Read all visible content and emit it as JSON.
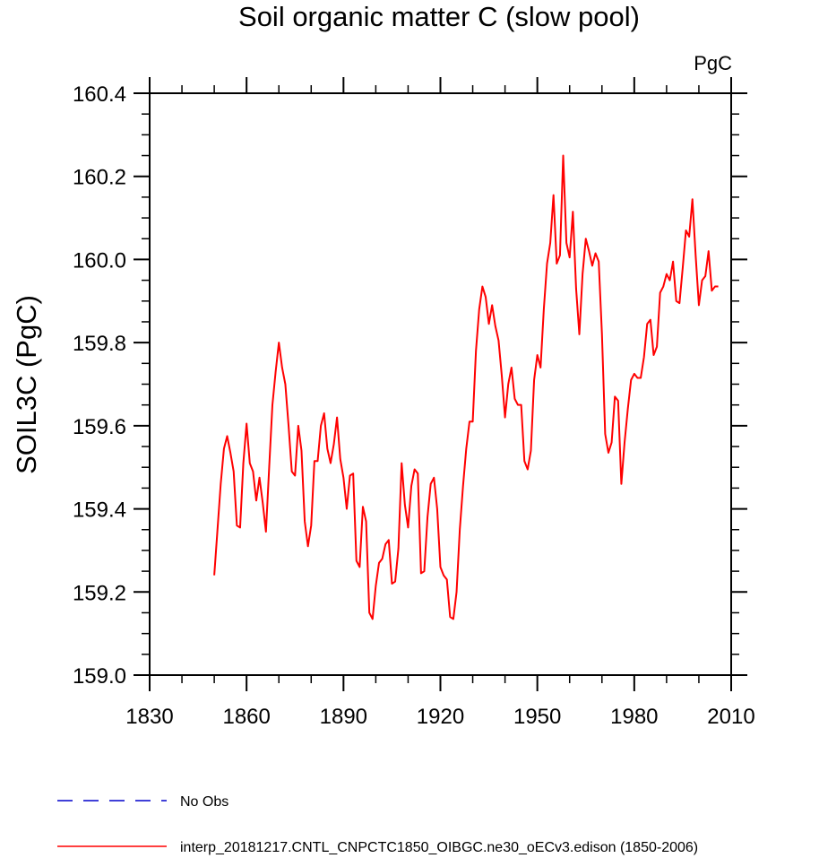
{
  "chart_data": {
    "type": "line",
    "title": "Soil organic matter C (slow pool)",
    "units": "PgC",
    "ylabel": "SOIL3C  (PgC)",
    "xlabel": "",
    "xlim": [
      1830,
      2010
    ],
    "ylim": [
      159.0,
      160.4
    ],
    "xticks": [
      1830,
      1860,
      1890,
      1920,
      1950,
      1980,
      2010
    ],
    "yticks": [
      159.0,
      159.2,
      159.4,
      159.6,
      159.8,
      160.0,
      160.2,
      160.4
    ],
    "ytick_labels": [
      "159.0",
      "159.2",
      "159.4",
      "159.6",
      "159.8",
      "160.0",
      "160.2",
      "160.4"
    ],
    "grid": false,
    "legend_position": "bottom",
    "series": [
      {
        "name": "No Obs",
        "color": "#0000cc",
        "style": "dashed",
        "x": [],
        "y": []
      },
      {
        "name": "interp_20181217.CNTL_CNPCTC1850_OIBGC.ne30_oECv3.edison (1850-2006)",
        "color": "#ff0000",
        "style": "solid",
        "x": [
          1850,
          1851,
          1852,
          1853,
          1854,
          1855,
          1856,
          1857,
          1858,
          1859,
          1860,
          1861,
          1862,
          1863,
          1864,
          1865,
          1866,
          1867,
          1868,
          1869,
          1870,
          1871,
          1872,
          1873,
          1874,
          1875,
          1876,
          1877,
          1878,
          1879,
          1880,
          1881,
          1882,
          1883,
          1884,
          1885,
          1886,
          1887,
          1888,
          1889,
          1890,
          1891,
          1892,
          1893,
          1894,
          1895,
          1896,
          1897,
          1898,
          1899,
          1900,
          1901,
          1902,
          1903,
          1904,
          1905,
          1906,
          1907,
          1908,
          1909,
          1910,
          1911,
          1912,
          1913,
          1914,
          1915,
          1916,
          1917,
          1918,
          1919,
          1920,
          1921,
          1922,
          1923,
          1924,
          1925,
          1926,
          1927,
          1928,
          1929,
          1930,
          1931,
          1932,
          1933,
          1934,
          1935,
          1936,
          1937,
          1938,
          1939,
          1940,
          1941,
          1942,
          1943,
          1944,
          1945,
          1946,
          1947,
          1948,
          1949,
          1950,
          1951,
          1952,
          1953,
          1954,
          1955,
          1956,
          1957,
          1958,
          1959,
          1960,
          1961,
          1962,
          1963,
          1964,
          1965,
          1966,
          1967,
          1968,
          1969,
          1970,
          1971,
          1972,
          1973,
          1974,
          1975,
          1976,
          1977,
          1978,
          1979,
          1980,
          1981,
          1982,
          1983,
          1984,
          1985,
          1986,
          1987,
          1988,
          1989,
          1990,
          1991,
          1992,
          1993,
          1994,
          1995,
          1996,
          1997,
          1998,
          1999,
          2000,
          2001,
          2002,
          2003,
          2004,
          2005,
          2006
        ],
        "y": [
          159.24,
          159.35,
          159.46,
          159.545,
          159.575,
          159.535,
          159.49,
          159.36,
          159.355,
          159.51,
          159.605,
          159.51,
          159.49,
          159.42,
          159.475,
          159.415,
          159.345,
          159.5,
          159.65,
          159.73,
          159.8,
          159.74,
          159.7,
          159.6,
          159.49,
          159.48,
          159.6,
          159.54,
          159.37,
          159.31,
          159.36,
          159.515,
          159.515,
          159.6,
          159.63,
          159.545,
          159.51,
          159.555,
          159.62,
          159.52,
          159.475,
          159.4,
          159.48,
          159.485,
          159.275,
          159.26,
          159.405,
          159.37,
          159.15,
          159.135,
          159.215,
          159.27,
          159.28,
          159.315,
          159.325,
          159.22,
          159.225,
          159.305,
          159.51,
          159.41,
          159.355,
          159.455,
          159.495,
          159.485,
          159.245,
          159.25,
          159.38,
          159.46,
          159.475,
          159.4,
          159.26,
          159.24,
          159.23,
          159.14,
          159.135,
          159.2,
          159.35,
          159.455,
          159.545,
          159.61,
          159.61,
          159.78,
          159.88,
          159.935,
          159.91,
          159.845,
          159.89,
          159.84,
          159.805,
          159.72,
          159.62,
          159.7,
          159.74,
          159.665,
          159.65,
          159.65,
          159.515,
          159.495,
          159.54,
          159.71,
          159.77,
          159.74,
          159.88,
          159.99,
          160.04,
          160.155,
          159.99,
          160.01,
          160.25,
          160.04,
          160.005,
          160.115,
          159.93,
          159.82,
          159.965,
          160.05,
          160.02,
          159.985,
          160.015,
          159.995,
          159.82,
          159.58,
          159.535,
          159.56,
          159.67,
          159.66,
          159.46,
          159.56,
          159.64,
          159.71,
          159.725,
          159.715,
          159.715,
          159.765,
          159.845,
          159.855,
          159.77,
          159.79,
          159.92,
          159.935,
          159.965,
          159.95,
          159.995,
          159.9,
          159.895,
          159.98,
          160.07,
          160.055,
          160.145,
          160.01,
          159.89,
          159.95,
          159.96,
          160.02,
          159.925,
          159.935,
          159.935
        ]
      }
    ]
  }
}
